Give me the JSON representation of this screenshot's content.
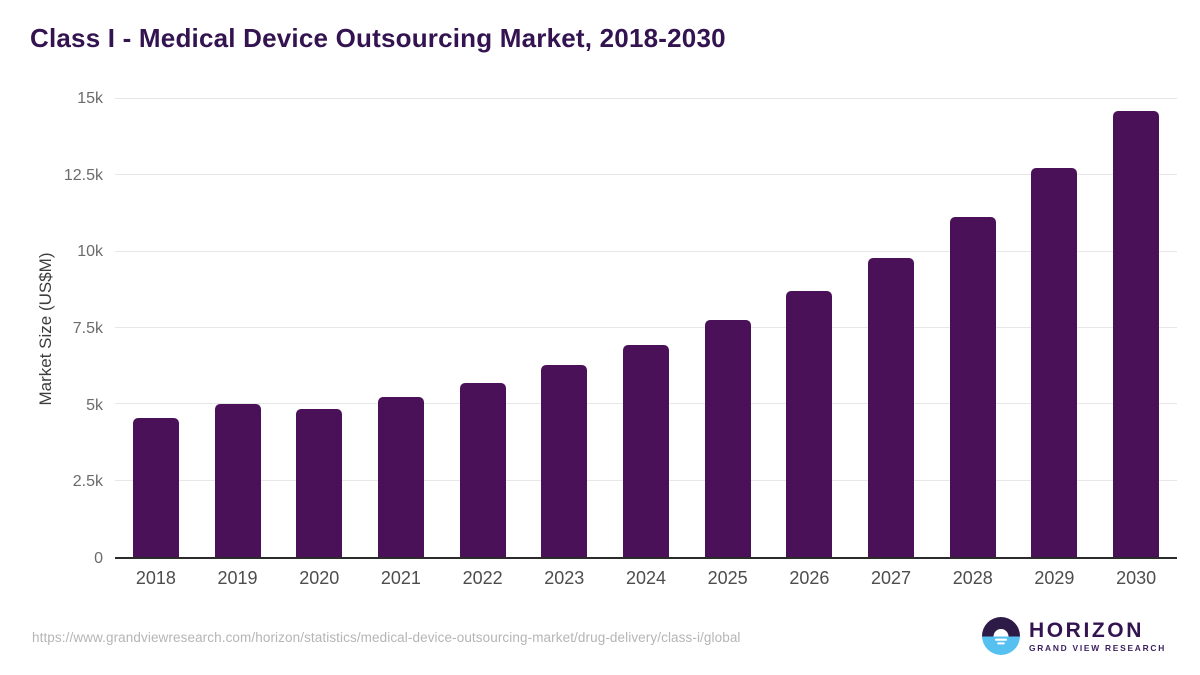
{
  "title": "Class I - Medical Device Outsourcing Market, 2018-2030",
  "chart_data": {
    "type": "bar",
    "title": "Class I - Medical Device Outsourcing Market, 2018-2030",
    "categories": [
      "2018",
      "2019",
      "2020",
      "2021",
      "2022",
      "2023",
      "2024",
      "2025",
      "2026",
      "2027",
      "2028",
      "2029",
      "2030"
    ],
    "values": [
      4550,
      5000,
      4850,
      5250,
      5700,
      6300,
      6950,
      7750,
      8700,
      9800,
      11150,
      12750,
      14600
    ],
    "xlabel": "",
    "ylabel": "Market Size (US$M)",
    "ylim": [
      0,
      15000
    ],
    "yticks": [
      {
        "value": 0,
        "label": "0"
      },
      {
        "value": 2500,
        "label": "2.5k"
      },
      {
        "value": 5000,
        "label": "5k"
      },
      {
        "value": 7500,
        "label": "7.5k"
      },
      {
        "value": 10000,
        "label": "10k"
      },
      {
        "value": 12500,
        "label": "12.5k"
      },
      {
        "value": 15000,
        "label": "15k"
      }
    ],
    "grid": true,
    "legend": false,
    "bar_color": "#4a1159"
  },
  "footer": {
    "source_url": "https://www.grandviewresearch.com/horizon/statistics/medical-device-outsourcing-market/drug-delivery/class-i/global",
    "logo": {
      "name": "HORIZON",
      "subtitle": "GRAND VIEW RESEARCH"
    }
  },
  "colors": {
    "title": "#331450",
    "bar": "#4a1159",
    "gridline": "#e7e7e7",
    "axis_line": "#2b2b2b",
    "y_tick_text": "#6b6b6b",
    "x_tick_text": "#4d4d4d",
    "source_text": "#b5b5b5",
    "logo_dark": "#2e1a47",
    "logo_blue": "#56c1f1"
  }
}
